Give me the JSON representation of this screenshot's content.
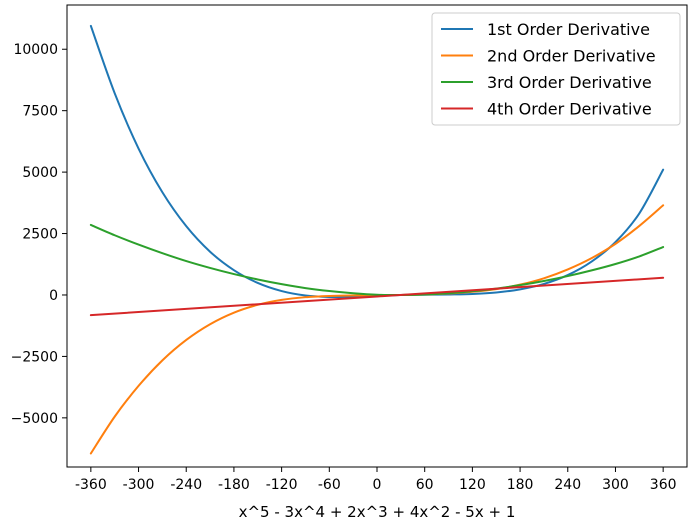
{
  "chart_data": {
    "type": "line",
    "title": "",
    "xlabel": "x^5 - 3x^4 + 2x^3 + 4x^2 - 5x + 1",
    "ylabel": "",
    "xlim": [
      -390,
      390
    ],
    "ylim": [
      -7000,
      11800
    ],
    "x_ticks": [
      -360,
      -300,
      -240,
      -180,
      -120,
      -60,
      0,
      60,
      120,
      180,
      240,
      300,
      360
    ],
    "y_ticks": [
      -5000,
      -2500,
      0,
      2500,
      5000,
      7500,
      10000
    ],
    "grid": false,
    "legend_position": "top-right",
    "series": [
      {
        "name": "1st Order Derivative",
        "color": "#1f77b4",
        "x": [
          -360,
          -330,
          -300,
          -270,
          -240,
          -210,
          -180,
          -150,
          -120,
          -90,
          -60,
          -30,
          0,
          30,
          60,
          90,
          120,
          150,
          180,
          210,
          240,
          270,
          300,
          330,
          360
        ],
        "y": [
          10950,
          8210,
          5960,
          4180,
          2800,
          1760,
          1010,
          490,
          160,
          -20,
          -80,
          -70,
          -30,
          0,
          10,
          20,
          40,
          100,
          230,
          450,
          810,
          1360,
          2150,
          3320,
          5100
        ]
      },
      {
        "name": "2nd Order Derivative",
        "color": "#ff7f0e",
        "x": [
          -360,
          -330,
          -300,
          -270,
          -240,
          -210,
          -180,
          -150,
          -120,
          -90,
          -60,
          -30,
          0,
          30,
          60,
          90,
          120,
          150,
          180,
          210,
          240,
          270,
          300,
          330,
          360
        ],
        "y": [
          -6450,
          -4950,
          -3700,
          -2660,
          -1830,
          -1190,
          -720,
          -400,
          -200,
          -90,
          -40,
          -20,
          -10,
          0,
          20,
          60,
          130,
          240,
          420,
          680,
          1040,
          1500,
          2080,
          2810,
          3650
        ]
      },
      {
        "name": "3rd Order Derivative",
        "color": "#2ca02c",
        "x": [
          -360,
          -330,
          -300,
          -270,
          -240,
          -210,
          -180,
          -150,
          -120,
          -90,
          -60,
          -30,
          0,
          30,
          60,
          90,
          120,
          150,
          180,
          210,
          240,
          270,
          300,
          330,
          360
        ],
        "y": [
          2850,
          2430,
          2050,
          1700,
          1380,
          1100,
          850,
          630,
          440,
          280,
          160,
          70,
          10,
          0,
          20,
          70,
          150,
          260,
          400,
          570,
          770,
          1000,
          1260,
          1570,
          1950
        ]
      },
      {
        "name": "4th Order Derivative",
        "color": "#d62728",
        "x": [
          -360,
          360
        ],
        "y": [
          -820,
          700
        ]
      }
    ]
  }
}
